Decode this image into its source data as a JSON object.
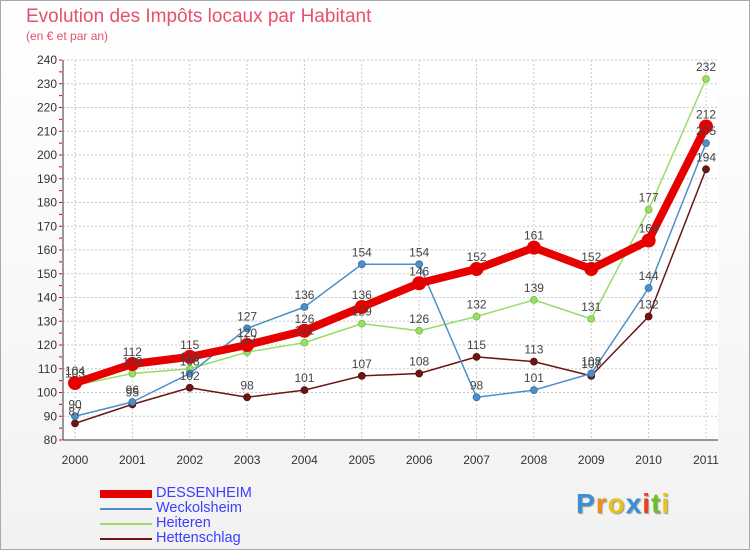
{
  "chart_data": {
    "type": "line",
    "title": "Evolution des Impôts locaux par Habitant",
    "subtitle": "(en € et par an)",
    "xlabel": "",
    "ylabel": "",
    "ylim": [
      80,
      240
    ],
    "ytick_step": 10,
    "grid": true,
    "legend_position": "bottom-left",
    "categories": [
      "2000",
      "2001",
      "2002",
      "2003",
      "2004",
      "2005",
      "2006",
      "2007",
      "2008",
      "2009",
      "2010",
      "2011"
    ],
    "series": [
      {
        "name": "Hettenschlag",
        "color": "#6b1515",
        "values": [
          87,
          95,
          102,
          98,
          101,
          107,
          108,
          115,
          113,
          107,
          132,
          194
        ]
      },
      {
        "name": "Heiteren",
        "color": "#99dd66",
        "values": [
          103,
          108,
          110,
          117,
          121,
          129,
          126,
          132,
          139,
          131,
          177,
          232
        ]
      },
      {
        "name": "Weckolsheim",
        "color": "#4f8fc8",
        "values": [
          90,
          96,
          108,
          127,
          136,
          154,
          154,
          98,
          101,
          108,
          144,
          205
        ]
      },
      {
        "name": "DESSENHEIM",
        "color": "#e60000",
        "values": [
          104,
          112,
          115,
          120,
          126,
          136,
          146,
          152,
          161,
          152,
          164,
          212
        ]
      }
    ]
  },
  "legend": {
    "items": [
      {
        "name": "DESSENHEIM",
        "color": "#e60000"
      },
      {
        "name": "Weckolsheim",
        "color": "#4f8fc8"
      },
      {
        "name": "Heiteren",
        "color": "#99dd66"
      },
      {
        "name": "Hettenschlag",
        "color": "#6b1515"
      }
    ]
  },
  "logo": {
    "letters": [
      "P",
      "r",
      "o",
      "x",
      "i",
      "t",
      "i"
    ],
    "colors": [
      "#3b8fd6",
      "#f28c1a",
      "#e8c21a",
      "#3b8fd6",
      "#e8431a",
      "#6abf2a",
      "#e8c21a"
    ]
  }
}
